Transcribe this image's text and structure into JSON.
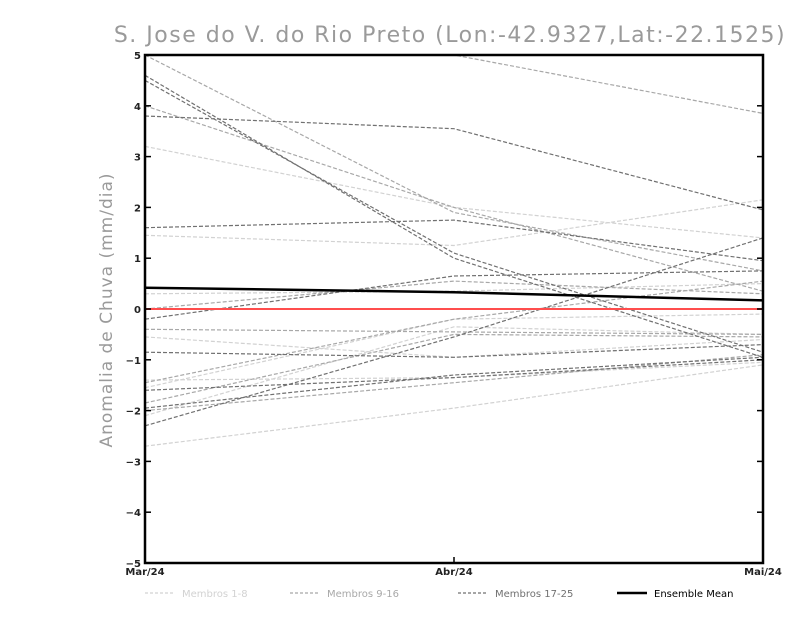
{
  "chart_data": {
    "type": "line",
    "title": "S. Jose do V. do Rio Preto (Lon:-42.9327,Lat:-22.1525)",
    "ylabel": "Anomalia de Chuva (mm/dia)",
    "xlabel": "",
    "categories": [
      "Mar/24",
      "Abr/24",
      "Mai/24"
    ],
    "ylim": [
      -5,
      5
    ],
    "yticks": [
      -5,
      -4,
      -3,
      -2,
      -1,
      0,
      1,
      2,
      3,
      4,
      5
    ],
    "zero_line_color": "#ff4d4d",
    "groups": [
      {
        "name": "Membros 1-8",
        "color": "#d2d2d2"
      },
      {
        "name": "Membros 9-16",
        "color": "#a8a8a8"
      },
      {
        "name": "Membros 17-25",
        "color": "#707070"
      },
      {
        "name": "Ensemble Mean",
        "color": "#000000"
      }
    ],
    "series": [
      {
        "group": 0,
        "values": [
          3.2,
          2.0,
          1.4
        ]
      },
      {
        "group": 0,
        "values": [
          1.45,
          1.25,
          2.15
        ]
      },
      {
        "group": 0,
        "values": [
          -1.55,
          -0.2,
          -0.1
        ]
      },
      {
        "group": 0,
        "values": [
          -2.1,
          -0.35,
          -0.5
        ]
      },
      {
        "group": 0,
        "values": [
          -2.7,
          -1.95,
          -1.1
        ]
      },
      {
        "group": 0,
        "values": [
          -0.55,
          -0.95,
          -0.6
        ]
      },
      {
        "group": 0,
        "values": [
          -1.4,
          -1.35,
          -1.05
        ]
      },
      {
        "group": 0,
        "values": [
          0.3,
          0.35,
          0.5
        ]
      },
      {
        "group": 1,
        "values": [
          5.0,
          5.0,
          3.85
        ]
      },
      {
        "group": 1,
        "values": [
          4.0,
          2.0,
          0.35
        ]
      },
      {
        "group": 1,
        "values": [
          5.0,
          1.9,
          0.75
        ]
      },
      {
        "group": 1,
        "values": [
          -0.4,
          -0.45,
          -0.5
        ]
      },
      {
        "group": 1,
        "values": [
          -1.85,
          -0.5,
          -0.55
        ]
      },
      {
        "group": 1,
        "values": [
          -2.0,
          -1.45,
          -0.9
        ]
      },
      {
        "group": 1,
        "values": [
          -1.45,
          -0.2,
          0.55
        ]
      },
      {
        "group": 1,
        "values": [
          0.0,
          0.55,
          0.3
        ]
      },
      {
        "group": 2,
        "values": [
          4.6,
          1.0,
          -0.95
        ]
      },
      {
        "group": 2,
        "values": [
          3.8,
          3.55,
          1.95
        ]
      },
      {
        "group": 2,
        "values": [
          1.6,
          1.75,
          0.95
        ]
      },
      {
        "group": 2,
        "values": [
          -2.3,
          -0.55,
          1.4
        ]
      },
      {
        "group": 2,
        "values": [
          -0.85,
          -0.95,
          -0.7
        ]
      },
      {
        "group": 2,
        "values": [
          -1.6,
          -1.35,
          -1.0
        ]
      },
      {
        "group": 2,
        "values": [
          -1.95,
          -1.3,
          -0.95
        ]
      },
      {
        "group": 2,
        "values": [
          -0.2,
          0.65,
          0.75
        ]
      },
      {
        "group": 2,
        "values": [
          4.5,
          1.1,
          -0.85
        ]
      },
      {
        "group": 3,
        "values": [
          0.42,
          0.33,
          0.17
        ]
      }
    ]
  }
}
